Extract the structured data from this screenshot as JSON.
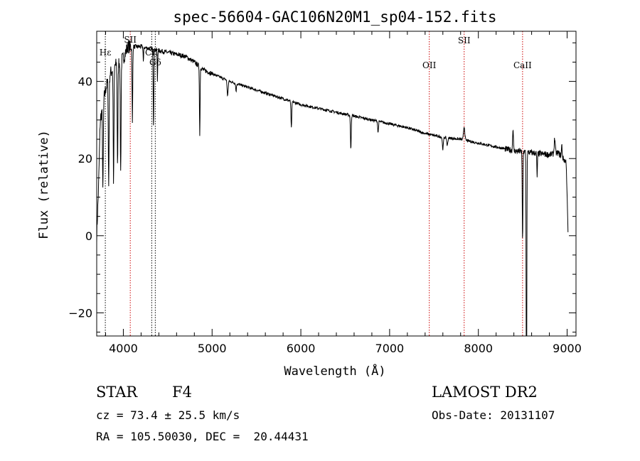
{
  "chart_data": {
    "type": "line",
    "title": "spec-56604-GAC106N20M1_sp04-152.fits",
    "xlabel": "Wavelength (Å)",
    "ylabel": "Flux (relative)",
    "xlim": [
      3700,
      9100
    ],
    "ylim": [
      -26,
      53
    ],
    "xticks": [
      4000,
      5000,
      6000,
      7000,
      8000,
      9000
    ],
    "yticks": [
      -20,
      0,
      20,
      40
    ],
    "grid": false,
    "continuum": [
      [
        3700,
        0
      ],
      [
        3720,
        12
      ],
      [
        3740,
        30
      ],
      [
        3800,
        38
      ],
      [
        3850,
        42
      ],
      [
        3900,
        44
      ],
      [
        3950,
        45
      ],
      [
        4000,
        46
      ],
      [
        4050,
        49
      ],
      [
        4100,
        49
      ],
      [
        4200,
        49
      ],
      [
        4300,
        48.5
      ],
      [
        4400,
        48
      ],
      [
        4500,
        47.5
      ],
      [
        4600,
        47
      ],
      [
        4700,
        46.5
      ],
      [
        4800,
        45
      ],
      [
        4900,
        43
      ],
      [
        5000,
        42
      ],
      [
        5200,
        40
      ],
      [
        5400,
        38.5
      ],
      [
        5600,
        37
      ],
      [
        5800,
        35.5
      ],
      [
        6000,
        34
      ],
      [
        6200,
        33
      ],
      [
        6400,
        32
      ],
      [
        6600,
        31
      ],
      [
        6800,
        30
      ],
      [
        7000,
        29
      ],
      [
        7200,
        28
      ],
      [
        7400,
        26.5
      ],
      [
        7600,
        25.5
      ],
      [
        7800,
        25
      ],
      [
        8000,
        24
      ],
      [
        8200,
        23
      ],
      [
        8400,
        22
      ],
      [
        8600,
        21.5
      ],
      [
        8800,
        21
      ],
      [
        8900,
        21.5
      ],
      [
        8990,
        19
      ],
      [
        9010,
        1
      ]
    ],
    "absorption_features": [
      [
        3770,
        22,
        6
      ],
      [
        3835,
        28,
        6
      ],
      [
        3890,
        30,
        6
      ],
      [
        3935,
        26,
        6
      ],
      [
        3970,
        29,
        6
      ],
      [
        4102,
        20,
        5
      ],
      [
        4226,
        4,
        4
      ],
      [
        4340,
        20,
        5
      ],
      [
        4384,
        8,
        4
      ],
      [
        4861,
        18,
        5
      ],
      [
        5175,
        4,
        8
      ],
      [
        5270,
        2,
        6
      ],
      [
        5893,
        7,
        6
      ],
      [
        6563,
        9,
        6
      ],
      [
        6870,
        3,
        6
      ],
      [
        7600,
        3,
        8
      ],
      [
        7650,
        2,
        8
      ],
      [
        8498,
        24,
        5
      ],
      [
        8542,
        72,
        5
      ],
      [
        8662,
        6,
        5
      ]
    ],
    "emission_features": [
      [
        7840,
        3.5,
        10
      ],
      [
        8390,
        6,
        6
      ],
      [
        8860,
        4,
        8
      ],
      [
        8940,
        3,
        6
      ]
    ],
    "lines": [
      {
        "wavelength": 3797,
        "label": "Hε",
        "color": "#000000"
      },
      {
        "wavelength": 4078,
        "label": "SII",
        "color": "#cc0000"
      },
      {
        "wavelength": 4320,
        "label": "CII",
        "color": "#000000"
      },
      {
        "wavelength": 4360,
        "label": "Gδ",
        "color": "#000000"
      },
      {
        "wavelength": 7447,
        "label": "OII",
        "color": "#cc0000"
      },
      {
        "wavelength": 7840,
        "label": "SII",
        "color": "#cc0000"
      },
      {
        "wavelength": 8498,
        "label": "CaII",
        "color": "#cc0000"
      }
    ]
  },
  "info": {
    "class": "STAR",
    "subclass": "F4",
    "survey": "LAMOST DR2",
    "cz": "cz = 73.4 ± 25.5 km/s",
    "obs_date": "Obs-Date: 20131107",
    "coords": "RA = 105.50030, DEC =  20.44431"
  }
}
